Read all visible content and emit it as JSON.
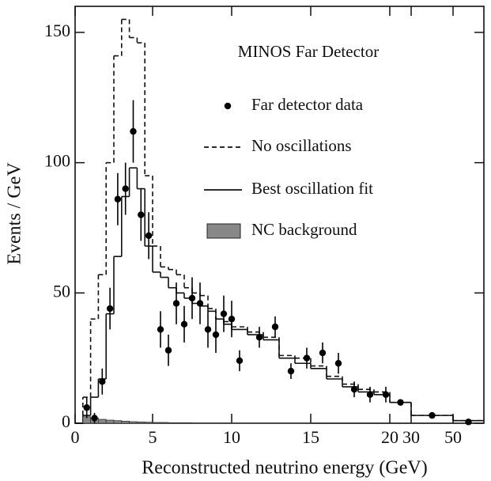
{
  "chart_data": {
    "type": "histogram",
    "annotation": "MINOS Far Detector",
    "x_label": "Reconstructed neutrino energy (GeV)",
    "y_label": "Events / GeV",
    "xscale": "piecewise",
    "xlim": [
      0,
      100
    ],
    "xticks": [
      0,
      5,
      10,
      15,
      20,
      30,
      50
    ],
    "ylim": [
      0,
      160
    ],
    "yticks": [
      0,
      50,
      100,
      150
    ],
    "bins": [
      0,
      0.5,
      1,
      1.5,
      2,
      2.5,
      3,
      3.5,
      4,
      4.5,
      5,
      5.5,
      6,
      6.5,
      7,
      7.5,
      8,
      8.5,
      9,
      9.5,
      10,
      11,
      12,
      13,
      14,
      15,
      16,
      17,
      18,
      19,
      20,
      30,
      50,
      100
    ],
    "series": [
      {
        "name": "No oscillations",
        "color": "#111111",
        "style": "dashed",
        "values": [
          0,
          10,
          40,
          57,
          100,
          141,
          155,
          148,
          146,
          95,
          68,
          60,
          59,
          57,
          52,
          50,
          49,
          44,
          40,
          39,
          37,
          35,
          33,
          26,
          25,
          22,
          18,
          15,
          13,
          12,
          8,
          3,
          1
        ]
      },
      {
        "name": "Best oscillation fit",
        "color": "#111111",
        "style": "solid",
        "values": [
          0,
          3,
          10,
          17,
          42,
          64,
          87,
          98,
          90,
          68,
          58,
          56,
          52,
          50,
          48,
          46,
          45,
          43,
          40,
          38,
          36,
          34,
          32,
          25,
          23,
          21,
          17,
          14,
          12,
          11,
          8,
          3,
          1
        ]
      },
      {
        "name": "NC background",
        "color": "#888888",
        "style": "filled",
        "values": [
          0,
          2.5,
          2,
          1.5,
          1.2,
          1,
          0.8,
          0.6,
          0.5,
          0.4,
          0.3,
          0.3,
          0.2,
          0.2,
          0.2,
          0.1,
          0.1,
          0.1,
          0.1,
          0.1,
          0.1,
          0.1,
          0.1,
          0.1,
          0.1,
          0,
          0,
          0,
          0,
          0,
          0,
          0,
          0
        ]
      }
    ],
    "points": {
      "name": "Far detector data",
      "color": "#000000",
      "x": [
        0.75,
        1.25,
        1.75,
        2.25,
        2.75,
        3.25,
        3.75,
        4.25,
        4.75,
        5.5,
        6,
        6.5,
        7,
        7.5,
        8,
        8.5,
        9,
        9.5,
        10,
        10.5,
        11.75,
        12.75,
        13.75,
        14.75,
        15.75,
        16.75,
        17.75,
        18.75,
        19.75,
        25,
        40,
        75
      ],
      "values": [
        6,
        2,
        16,
        44,
        86,
        90,
        112,
        80,
        72,
        36,
        28,
        46,
        38,
        48,
        46,
        36,
        34,
        42,
        40,
        24,
        33,
        37,
        20,
        25,
        27,
        23,
        13,
        11,
        11,
        8,
        3,
        0.5
      ],
      "errors": [
        4,
        2,
        5,
        8,
        10,
        10,
        12,
        10,
        9,
        7,
        6,
        8,
        7,
        8,
        8,
        7,
        7,
        7,
        7,
        4,
        4,
        4,
        3,
        4,
        4,
        4,
        3,
        3,
        3,
        1,
        1,
        0.5
      ]
    }
  }
}
